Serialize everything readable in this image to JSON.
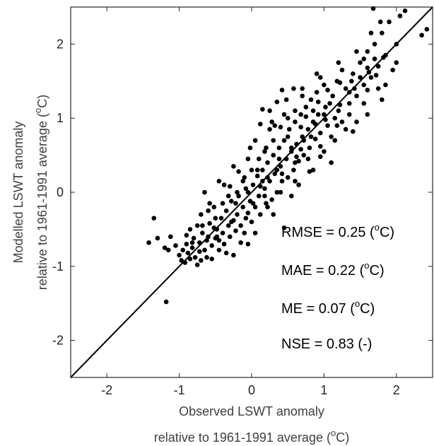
{
  "chart_data": {
    "type": "scatter",
    "xlabel_line1": "Observed LSWT anomaly",
    "xlabel_line2_pre": "relative to 1961-1991 average (",
    "xlabel_line2_sup": "o",
    "xlabel_line2_post": "C)",
    "ylabel_line1": "Modelled LSWT anomaly",
    "ylabel_line2_pre": "relative to 1961-1991 average (",
    "ylabel_line2_sup": "o",
    "ylabel_line2_post": "C)",
    "xlim": [
      -2.5,
      2.5
    ],
    "ylim": [
      -2.5,
      2.5
    ],
    "x_ticks": [
      -2,
      -1,
      0,
      1,
      2
    ],
    "x_tick_labels": [
      "-2",
      "-1",
      "0",
      "1",
      "2"
    ],
    "y_ticks": [
      -2,
      -1,
      0,
      1,
      2
    ],
    "y_tick_labels": [
      "-2",
      "-1",
      "0",
      "1",
      "2"
    ],
    "grid": false,
    "reference_line": {
      "from": [
        -2.5,
        -2.5
      ],
      "to": [
        2.5,
        2.5
      ]
    },
    "annotations": [
      {
        "pre": "RMSE = 0.25 (",
        "sup": "o",
        "post": "C)"
      },
      {
        "pre": "MAE = 0.22 (",
        "sup": "o",
        "post": "C)"
      },
      {
        "pre": "ME = 0.07 (",
        "sup": "o",
        "post": "C)"
      },
      {
        "pre": "NSE = 0.83 (-)",
        "sup": "",
        "post": ""
      }
    ],
    "points": [
      [
        -1.42,
        -0.68
      ],
      [
        -1.35,
        -0.35
      ],
      [
        -1.18,
        -1.48
      ],
      [
        -1.15,
        -0.78
      ],
      [
        -1.12,
        -0.6
      ],
      [
        -1.05,
        -0.72
      ],
      [
        -1.0,
        -0.85
      ],
      [
        -0.97,
        -0.92
      ],
      [
        -0.95,
        -0.78
      ],
      [
        -0.92,
        -0.95
      ],
      [
        -0.9,
        -0.7
      ],
      [
        -0.88,
        -0.82
      ],
      [
        -0.85,
        -0.9
      ],
      [
        -0.82,
        -0.75
      ],
      [
        -0.8,
        -0.62
      ],
      [
        -0.78,
        -0.88
      ],
      [
        -0.75,
        -0.45
      ],
      [
        -0.72,
        -0.68
      ],
      [
        -0.7,
        -0.92
      ],
      [
        -0.68,
        -0.55
      ],
      [
        -0.65,
        -0.78
      ],
      [
        -0.62,
        -0.88
      ],
      [
        -0.6,
        -0.6
      ],
      [
        -0.58,
        -0.42
      ],
      [
        -0.55,
        -0.72
      ],
      [
        -0.52,
        -0.2
      ],
      [
        -0.5,
        -0.62
      ],
      [
        -0.48,
        -0.5
      ],
      [
        -0.45,
        -0.78
      ],
      [
        -0.42,
        -0.35
      ],
      [
        -0.4,
        -0.55
      ],
      [
        -0.38,
        -0.7
      ],
      [
        -0.35,
        -0.25
      ],
      [
        -0.32,
        -0.45
      ],
      [
        -0.3,
        -0.6
      ],
      [
        -0.28,
        -0.12
      ],
      [
        -0.25,
        -0.38
      ],
      [
        -0.22,
        -0.52
      ],
      [
        -0.2,
        -0.3
      ],
      [
        -0.18,
        -0.05
      ],
      [
        -0.15,
        -0.45
      ],
      [
        -0.12,
        -0.2
      ],
      [
        -0.1,
        -0.55
      ],
      [
        -0.08,
        0.05
      ],
      [
        -0.05,
        -0.28
      ],
      [
        -0.02,
        -0.12
      ],
      [
        0.0,
        -0.4
      ],
      [
        0.02,
        0.1
      ],
      [
        0.05,
        -0.2
      ],
      [
        0.08,
        0.22
      ],
      [
        0.1,
        -0.05
      ],
      [
        0.12,
        -0.3
      ],
      [
        0.15,
        0.3
      ],
      [
        0.18,
        0.05
      ],
      [
        0.2,
        -0.15
      ],
      [
        0.22,
        0.4
      ],
      [
        0.25,
        0.15
      ],
      [
        0.28,
        -0.1
      ],
      [
        0.3,
        0.5
      ],
      [
        0.32,
        0.25
      ],
      [
        0.35,
        0.0
      ],
      [
        0.38,
        0.6
      ],
      [
        0.4,
        0.35
      ],
      [
        0.42,
        0.15
      ],
      [
        0.45,
        0.7
      ],
      [
        0.48,
        0.45
      ],
      [
        0.5,
        0.2
      ],
      [
        0.52,
        0.85
      ],
      [
        0.55,
        0.55
      ],
      [
        0.58,
        0.3
      ],
      [
        0.6,
        0.95
      ],
      [
        0.62,
        0.65
      ],
      [
        0.65,
        0.42
      ],
      [
        0.68,
        1.05
      ],
      [
        0.7,
        0.75
      ],
      [
        0.72,
        0.5
      ],
      [
        0.75,
        1.15
      ],
      [
        0.78,
        0.85
      ],
      [
        0.8,
        0.6
      ],
      [
        0.82,
        1.25
      ],
      [
        0.85,
        0.95
      ],
      [
        0.88,
        0.72
      ],
      [
        0.9,
        1.35
      ],
      [
        0.92,
        1.05
      ],
      [
        0.95,
        0.8
      ],
      [
        1.0,
        1.45
      ],
      [
        1.02,
        1.15
      ],
      [
        1.05,
        0.9
      ],
      [
        1.08,
        1.2
      ],
      [
        1.1,
        0.75
      ],
      [
        1.12,
        1.3
      ],
      [
        1.15,
        1.0
      ],
      [
        1.18,
        1.5
      ],
      [
        1.2,
        1.1
      ],
      [
        1.25,
        0.95
      ],
      [
        1.3,
        1.4
      ],
      [
        1.35,
        1.2
      ],
      [
        1.4,
        1.6
      ],
      [
        1.45,
        1.3
      ],
      [
        1.5,
        1.75
      ],
      [
        1.55,
        1.45
      ],
      [
        1.6,
        1.9
      ],
      [
        1.65,
        1.55
      ],
      [
        1.7,
        2.0
      ],
      [
        1.75,
        1.7
      ],
      [
        1.8,
        2.15
      ],
      [
        1.85,
        1.85
      ],
      [
        1.9,
        2.3
      ],
      [
        1.95,
        1.65
      ],
      [
        2.05,
        2.38
      ],
      [
        2.12,
        2.45
      ],
      [
        2.35,
        2.12
      ],
      [
        2.42,
        2.2
      ],
      [
        1.68,
        2.48
      ],
      [
        -0.6,
        -0.25
      ],
      [
        -0.3,
        0.08
      ],
      [
        -0.1,
        0.2
      ],
      [
        0.1,
        0.45
      ],
      [
        0.3,
        0.7
      ],
      [
        0.5,
        1.0
      ],
      [
        0.0,
        0.3
      ],
      [
        -0.2,
        0.0
      ],
      [
        -0.4,
        -0.15
      ],
      [
        0.6,
        1.1
      ],
      [
        0.2,
        0.6
      ],
      [
        0.4,
        0.88
      ],
      [
        0.25,
        1.1
      ],
      [
        0.15,
        1.12
      ],
      [
        0.45,
        -0.48
      ],
      [
        0.8,
        0.28
      ],
      [
        0.65,
        0.1
      ],
      [
        1.0,
        0.55
      ],
      [
        1.3,
        0.85
      ],
      [
        1.6,
        1.05
      ],
      [
        1.85,
        1.45
      ],
      [
        1.8,
        1.25
      ],
      [
        1.4,
        0.82
      ],
      [
        1.1,
        0.4
      ],
      [
        0.85,
        0.3
      ],
      [
        0.55,
        -0.05
      ],
      [
        0.3,
        -0.3
      ],
      [
        0.05,
        -0.55
      ],
      [
        -0.15,
        -0.68
      ],
      [
        -0.35,
        -0.82
      ],
      [
        -0.55,
        -0.9
      ],
      [
        -0.75,
        -0.98
      ],
      [
        -0.65,
        0.0
      ],
      [
        -0.45,
        0.15
      ],
      [
        -0.25,
        0.35
      ],
      [
        -0.05,
        0.45
      ],
      [
        0.05,
        0.7
      ],
      [
        0.25,
        0.85
      ],
      [
        0.45,
        1.05
      ],
      [
        0.7,
        1.3
      ],
      [
        0.95,
        1.55
      ],
      [
        1.2,
        1.75
      ],
      [
        1.45,
        1.9
      ],
      [
        1.65,
        2.15
      ],
      [
        1.78,
        2.3
      ],
      [
        -0.85,
        -0.5
      ],
      [
        -0.7,
        -0.3
      ],
      [
        -0.58,
        -0.15
      ],
      [
        -0.38,
        0.1
      ],
      [
        -0.18,
        0.28
      ],
      [
        0.35,
        1.22
      ],
      [
        0.48,
        1.25
      ],
      [
        0.7,
        1.4
      ],
      [
        0.9,
        1.6
      ],
      [
        1.25,
        1.65
      ],
      [
        1.5,
        1.55
      ],
      [
        1.55,
        1.2
      ],
      [
        1.75,
        1.4
      ],
      [
        2.0,
        2.0
      ],
      [
        2.0,
        1.75
      ],
      [
        0.6,
        0.4
      ],
      [
        0.78,
        0.45
      ],
      [
        0.95,
        0.62
      ],
      [
        1.15,
        0.7
      ],
      [
        1.35,
        1.05
      ],
      [
        1.45,
        0.95
      ],
      [
        0.22,
        -0.2
      ],
      [
        0.4,
        0.0
      ],
      [
        0.6,
        0.15
      ],
      [
        -0.05,
        -0.7
      ],
      [
        -0.25,
        -0.85
      ],
      [
        -0.45,
        -0.65
      ],
      [
        -0.02,
        0.6
      ],
      [
        0.12,
        0.92
      ],
      [
        0.28,
        0.95
      ],
      [
        0.42,
        1.38
      ],
      [
        0.58,
        1.4
      ],
      [
        0.75,
        1.02
      ],
      [
        0.92,
        1.22
      ],
      [
        1.05,
        1.38
      ],
      [
        1.22,
        1.48
      ],
      [
        1.38,
        1.5
      ],
      [
        1.6,
        1.68
      ],
      [
        1.7,
        1.8
      ],
      [
        0.18,
        0.55
      ],
      [
        0.08,
        0.3
      ],
      [
        -0.12,
        0.15
      ],
      [
        -0.32,
        -0.05
      ],
      [
        -0.5,
        -0.35
      ],
      [
        -0.68,
        -0.45
      ],
      [
        -0.9,
        -0.58
      ],
      [
        -1.2,
        -0.75
      ],
      [
        -1.3,
        -0.62
      ],
      [
        0.32,
        0.9
      ],
      [
        0.5,
        0.75
      ],
      [
        0.68,
        0.88
      ],
      [
        0.85,
        1.1
      ],
      [
        1.0,
        1.05
      ],
      [
        1.18,
        0.9
      ],
      [
        1.35,
        1.35
      ],
      [
        1.55,
        1.8
      ],
      [
        1.72,
        1.58
      ],
      [
        -0.22,
        -0.15
      ],
      [
        -0.08,
        -0.35
      ],
      [
        0.12,
        0.08
      ],
      [
        0.22,
        0.2
      ],
      [
        0.38,
        0.45
      ],
      [
        0.55,
        0.6
      ],
      [
        0.72,
        0.7
      ],
      [
        0.88,
        0.92
      ],
      [
        0.68,
        0.58
      ],
      [
        0.35,
        0.3
      ],
      [
        0.15,
        0.15
      ],
      [
        -0.05,
        0.0
      ],
      [
        -0.28,
        -0.4
      ],
      [
        -0.48,
        -0.6
      ],
      [
        -0.72,
        -0.8
      ],
      [
        -0.62,
        -0.65
      ],
      [
        -0.82,
        -0.68
      ],
      [
        -0.52,
        -0.48
      ],
      [
        0.02,
        -0.15
      ],
      [
        0.18,
        -0.05
      ],
      [
        0.42,
        0.25
      ],
      [
        0.62,
        0.48
      ],
      [
        0.82,
        0.75
      ],
      [
        1.02,
        0.98
      ],
      [
        1.22,
        1.18
      ],
      [
        1.42,
        1.4
      ],
      [
        1.62,
        1.62
      ],
      [
        1.82,
        1.82
      ],
      [
        0.95,
        0.48
      ],
      [
        1.6,
        1.38
      ]
    ]
  }
}
